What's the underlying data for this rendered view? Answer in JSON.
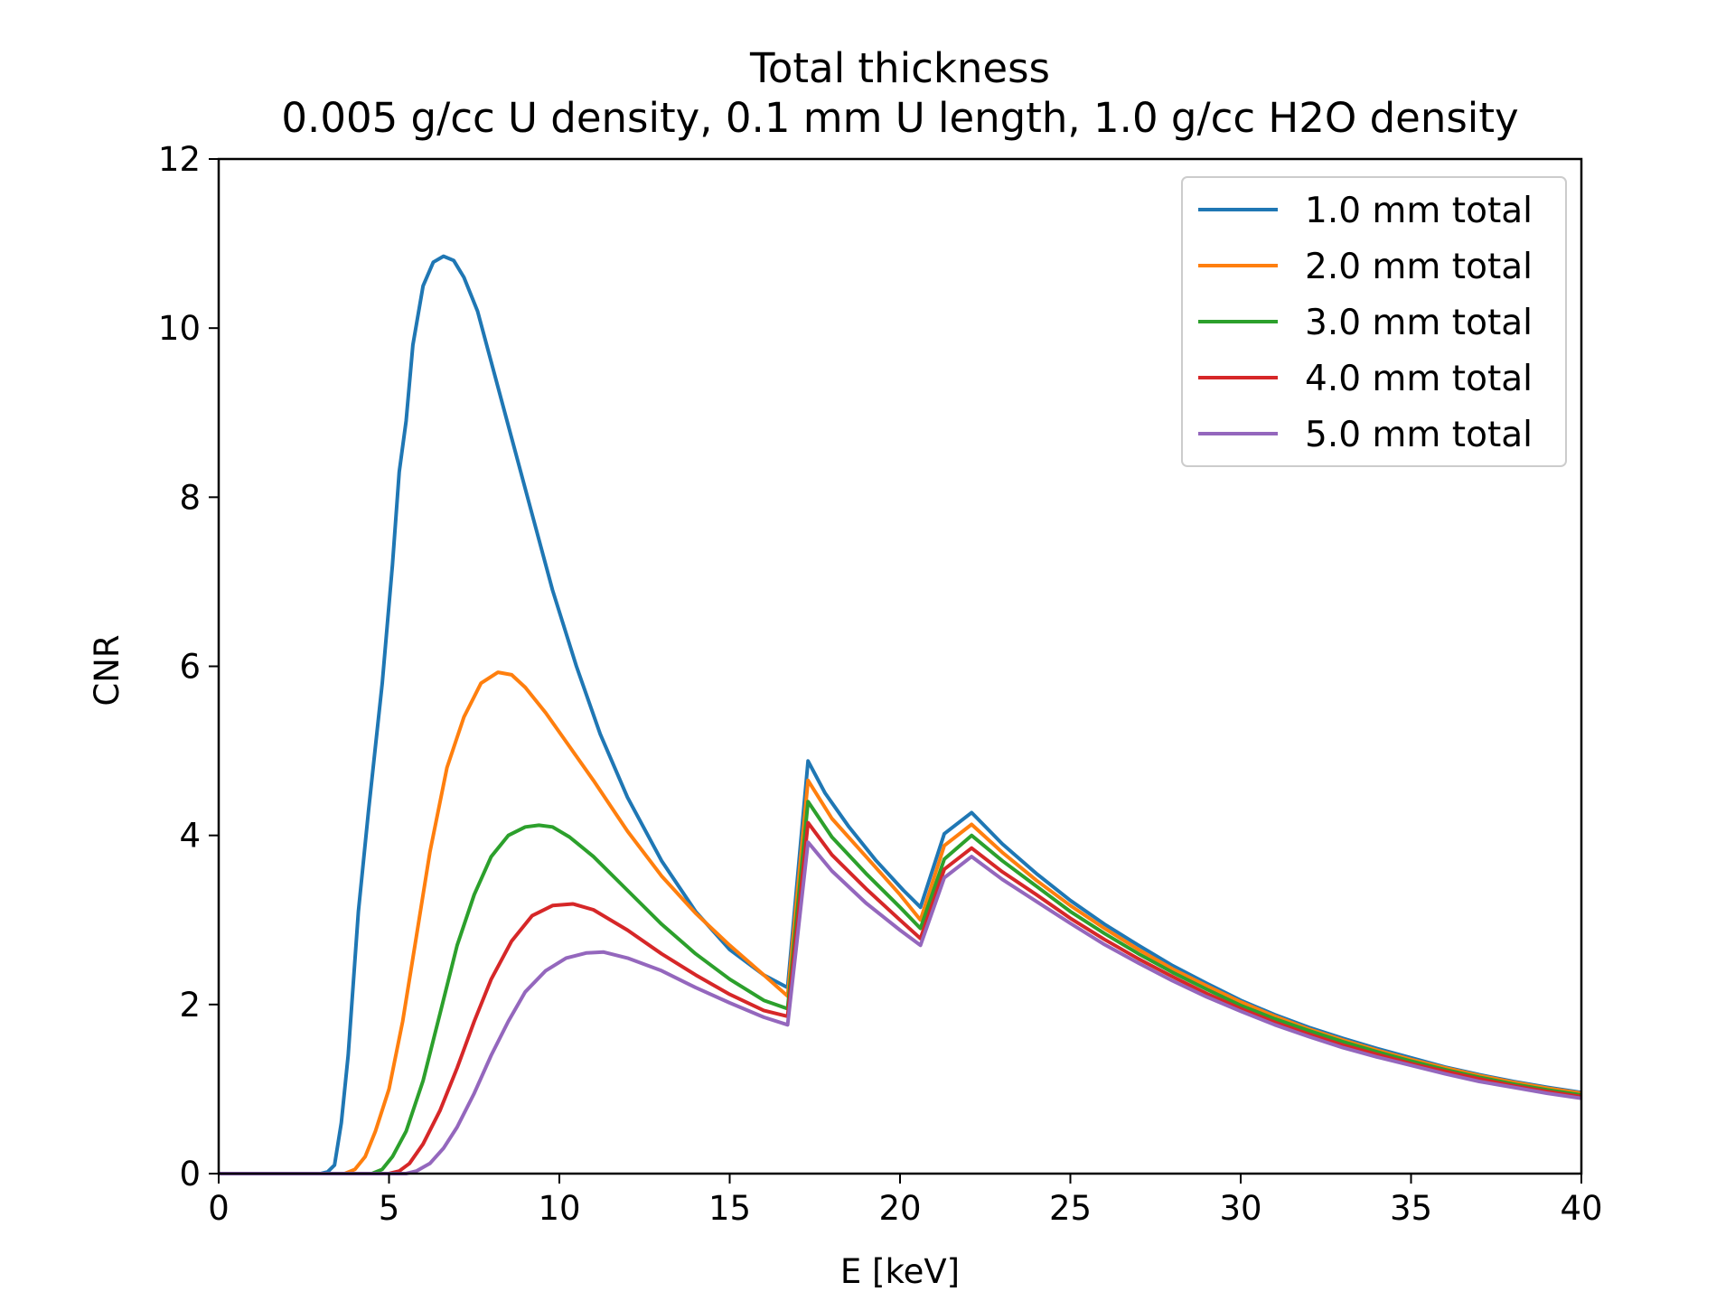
{
  "chart_data": {
    "type": "line",
    "title": "Total thickness",
    "subtitle": "0.005 g/cc U density, 0.1 mm U length, 1.0 g/cc H2O density",
    "xlabel": "E [keV]",
    "ylabel": "CNR",
    "xlim": [
      0,
      40
    ],
    "ylim": [
      0,
      12
    ],
    "xticks": [
      0,
      5,
      10,
      15,
      20,
      25,
      30,
      35,
      40
    ],
    "yticks": [
      0,
      2,
      4,
      6,
      8,
      10,
      12
    ],
    "grid": false,
    "legend_position": "top-right",
    "series": [
      {
        "name": "1.0 mm total",
        "color": "#1f77b4",
        "points": [
          [
            0,
            0
          ],
          [
            3,
            0
          ],
          [
            3.2,
            0.02
          ],
          [
            3.4,
            0.1
          ],
          [
            3.6,
            0.6
          ],
          [
            3.8,
            1.4
          ],
          [
            4.1,
            3.1
          ],
          [
            4.4,
            4.3
          ],
          [
            4.8,
            5.8
          ],
          [
            5.1,
            7.2
          ],
          [
            5.3,
            8.3
          ],
          [
            5.5,
            8.9
          ],
          [
            5.7,
            9.8
          ],
          [
            6.0,
            10.5
          ],
          [
            6.3,
            10.78
          ],
          [
            6.6,
            10.85
          ],
          [
            6.9,
            10.8
          ],
          [
            7.2,
            10.6
          ],
          [
            7.6,
            10.2
          ],
          [
            8.0,
            9.6
          ],
          [
            8.6,
            8.7
          ],
          [
            9.2,
            7.8
          ],
          [
            9.8,
            6.9
          ],
          [
            10.5,
            6.0
          ],
          [
            11.2,
            5.2
          ],
          [
            12,
            4.45
          ],
          [
            13,
            3.7
          ],
          [
            14,
            3.1
          ],
          [
            15,
            2.65
          ],
          [
            16,
            2.35
          ],
          [
            16.7,
            2.2
          ],
          [
            17.3,
            4.88
          ],
          [
            17.8,
            4.5
          ],
          [
            18.5,
            4.1
          ],
          [
            19.3,
            3.7
          ],
          [
            20.1,
            3.35
          ],
          [
            20.6,
            3.15
          ],
          [
            21.3,
            4.02
          ],
          [
            22.1,
            4.27
          ],
          [
            23,
            3.9
          ],
          [
            24,
            3.55
          ],
          [
            25,
            3.23
          ],
          [
            26,
            2.95
          ],
          [
            27,
            2.7
          ],
          [
            28,
            2.46
          ],
          [
            29,
            2.25
          ],
          [
            30,
            2.05
          ],
          [
            31,
            1.88
          ],
          [
            32,
            1.73
          ],
          [
            33,
            1.6
          ],
          [
            34,
            1.48
          ],
          [
            35,
            1.37
          ],
          [
            36,
            1.26
          ],
          [
            37,
            1.17
          ],
          [
            38,
            1.09
          ],
          [
            39,
            1.02
          ],
          [
            40,
            0.96
          ]
        ]
      },
      {
        "name": "2.0 mm total",
        "color": "#ff7f0e",
        "points": [
          [
            0,
            0
          ],
          [
            3.7,
            0
          ],
          [
            4.0,
            0.05
          ],
          [
            4.3,
            0.2
          ],
          [
            4.6,
            0.5
          ],
          [
            5.0,
            1.0
          ],
          [
            5.4,
            1.8
          ],
          [
            5.8,
            2.8
          ],
          [
            6.2,
            3.8
          ],
          [
            6.7,
            4.8
          ],
          [
            7.2,
            5.4
          ],
          [
            7.7,
            5.8
          ],
          [
            8.2,
            5.93
          ],
          [
            8.6,
            5.9
          ],
          [
            9.0,
            5.75
          ],
          [
            9.6,
            5.45
          ],
          [
            10.3,
            5.05
          ],
          [
            11,
            4.65
          ],
          [
            12,
            4.05
          ],
          [
            13,
            3.52
          ],
          [
            14,
            3.08
          ],
          [
            15,
            2.7
          ],
          [
            16,
            2.35
          ],
          [
            16.7,
            2.1
          ],
          [
            17.3,
            4.65
          ],
          [
            18,
            4.2
          ],
          [
            19,
            3.75
          ],
          [
            20,
            3.3
          ],
          [
            20.6,
            3.0
          ],
          [
            21.3,
            3.88
          ],
          [
            22.1,
            4.13
          ],
          [
            23,
            3.8
          ],
          [
            24,
            3.47
          ],
          [
            25,
            3.17
          ],
          [
            26,
            2.9
          ],
          [
            27,
            2.65
          ],
          [
            28,
            2.42
          ],
          [
            29,
            2.22
          ],
          [
            30,
            2.03
          ],
          [
            31,
            1.86
          ],
          [
            32,
            1.71
          ],
          [
            33,
            1.58
          ],
          [
            34,
            1.46
          ],
          [
            35,
            1.35
          ],
          [
            36,
            1.25
          ],
          [
            37,
            1.16
          ],
          [
            38,
            1.08
          ],
          [
            39,
            1.01
          ],
          [
            40,
            0.95
          ]
        ]
      },
      {
        "name": "3.0 mm total",
        "color": "#2ca02c",
        "points": [
          [
            0,
            0
          ],
          [
            4.5,
            0
          ],
          [
            4.8,
            0.05
          ],
          [
            5.1,
            0.2
          ],
          [
            5.5,
            0.5
          ],
          [
            6.0,
            1.1
          ],
          [
            6.5,
            1.9
          ],
          [
            7.0,
            2.7
          ],
          [
            7.5,
            3.3
          ],
          [
            8.0,
            3.75
          ],
          [
            8.5,
            4.0
          ],
          [
            9.0,
            4.1
          ],
          [
            9.4,
            4.12
          ],
          [
            9.8,
            4.1
          ],
          [
            10.3,
            3.98
          ],
          [
            11,
            3.75
          ],
          [
            12,
            3.35
          ],
          [
            13,
            2.95
          ],
          [
            14,
            2.6
          ],
          [
            15,
            2.3
          ],
          [
            16,
            2.05
          ],
          [
            16.7,
            1.95
          ],
          [
            17.3,
            4.4
          ],
          [
            18,
            3.98
          ],
          [
            19,
            3.55
          ],
          [
            20,
            3.15
          ],
          [
            20.6,
            2.9
          ],
          [
            21.3,
            3.72
          ],
          [
            22.1,
            4.0
          ],
          [
            23,
            3.7
          ],
          [
            24,
            3.4
          ],
          [
            25,
            3.1
          ],
          [
            26,
            2.84
          ],
          [
            27,
            2.6
          ],
          [
            28,
            2.38
          ],
          [
            29,
            2.18
          ],
          [
            30,
            1.99
          ],
          [
            31,
            1.83
          ],
          [
            32,
            1.69
          ],
          [
            33,
            1.56
          ],
          [
            34,
            1.44
          ],
          [
            35,
            1.33
          ],
          [
            36,
            1.23
          ],
          [
            37,
            1.14
          ],
          [
            38,
            1.06
          ],
          [
            39,
            0.99
          ],
          [
            40,
            0.93
          ]
        ]
      },
      {
        "name": "4.0 mm total",
        "color": "#d62728",
        "points": [
          [
            0,
            0
          ],
          [
            5.0,
            0
          ],
          [
            5.3,
            0.03
          ],
          [
            5.6,
            0.12
          ],
          [
            6.0,
            0.35
          ],
          [
            6.5,
            0.75
          ],
          [
            7.0,
            1.25
          ],
          [
            7.5,
            1.8
          ],
          [
            8.0,
            2.3
          ],
          [
            8.6,
            2.75
          ],
          [
            9.2,
            3.05
          ],
          [
            9.8,
            3.17
          ],
          [
            10.4,
            3.19
          ],
          [
            11,
            3.12
          ],
          [
            12,
            2.88
          ],
          [
            13,
            2.6
          ],
          [
            14,
            2.35
          ],
          [
            15,
            2.12
          ],
          [
            16,
            1.93
          ],
          [
            16.7,
            1.86
          ],
          [
            17.3,
            4.15
          ],
          [
            18,
            3.77
          ],
          [
            19,
            3.37
          ],
          [
            20,
            3.0
          ],
          [
            20.6,
            2.78
          ],
          [
            21.3,
            3.6
          ],
          [
            22.1,
            3.85
          ],
          [
            23,
            3.57
          ],
          [
            24,
            3.3
          ],
          [
            25,
            3.02
          ],
          [
            26,
            2.77
          ],
          [
            27,
            2.54
          ],
          [
            28,
            2.33
          ],
          [
            29,
            2.13
          ],
          [
            30,
            1.95
          ],
          [
            31,
            1.79
          ],
          [
            32,
            1.65
          ],
          [
            33,
            1.52
          ],
          [
            34,
            1.41
          ],
          [
            35,
            1.3
          ],
          [
            36,
            1.21
          ],
          [
            37,
            1.12
          ],
          [
            38,
            1.04
          ],
          [
            39,
            0.97
          ],
          [
            40,
            0.91
          ]
        ]
      },
      {
        "name": "5.0 mm total",
        "color": "#9467bd",
        "points": [
          [
            0,
            0
          ],
          [
            5.5,
            0
          ],
          [
            5.8,
            0.03
          ],
          [
            6.2,
            0.12
          ],
          [
            6.6,
            0.3
          ],
          [
            7.0,
            0.55
          ],
          [
            7.5,
            0.95
          ],
          [
            8.0,
            1.4
          ],
          [
            8.5,
            1.8
          ],
          [
            9.0,
            2.15
          ],
          [
            9.6,
            2.4
          ],
          [
            10.2,
            2.55
          ],
          [
            10.8,
            2.61
          ],
          [
            11.3,
            2.62
          ],
          [
            12,
            2.55
          ],
          [
            13,
            2.4
          ],
          [
            14,
            2.2
          ],
          [
            15,
            2.02
          ],
          [
            16,
            1.85
          ],
          [
            16.7,
            1.76
          ],
          [
            17.3,
            3.92
          ],
          [
            18,
            3.58
          ],
          [
            19,
            3.2
          ],
          [
            20,
            2.88
          ],
          [
            20.6,
            2.7
          ],
          [
            21.3,
            3.5
          ],
          [
            22.1,
            3.75
          ],
          [
            23,
            3.48
          ],
          [
            24,
            3.22
          ],
          [
            25,
            2.96
          ],
          [
            26,
            2.71
          ],
          [
            27,
            2.49
          ],
          [
            28,
            2.28
          ],
          [
            29,
            2.09
          ],
          [
            30,
            1.92
          ],
          [
            31,
            1.76
          ],
          [
            32,
            1.62
          ],
          [
            33,
            1.49
          ],
          [
            34,
            1.38
          ],
          [
            35,
            1.28
          ],
          [
            36,
            1.18
          ],
          [
            37,
            1.09
          ],
          [
            38,
            1.02
          ],
          [
            39,
            0.95
          ],
          [
            40,
            0.89
          ]
        ]
      }
    ]
  }
}
